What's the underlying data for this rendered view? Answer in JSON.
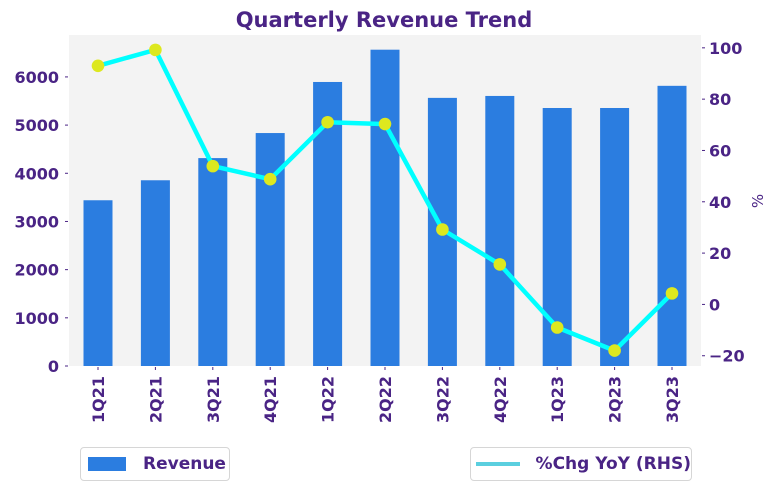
{
  "chart_data": {
    "type": "bar",
    "title": "Quarterly Revenue Trend",
    "categories": [
      "1Q21",
      "2Q21",
      "3Q21",
      "4Q21",
      "1Q22",
      "2Q22",
      "3Q22",
      "4Q22",
      "1Q23",
      "2Q23",
      "3Q23"
    ],
    "series": [
      {
        "name": "Revenue",
        "type": "bar",
        "axis": "left",
        "color": "#2b7de0",
        "values": [
          3440,
          3855,
          4315,
          4835,
          5895,
          6565,
          5565,
          5605,
          5355,
          5355,
          5815
        ]
      },
      {
        "name": "%Chg YoY (RHS)",
        "type": "line",
        "axis": "right",
        "color": "#00ffff",
        "marker_color": "#dde81f",
        "legend_color": "#5bcfdf",
        "values": [
          93.0,
          99.2,
          53.9,
          48.8,
          71.0,
          70.3,
          29.2,
          15.6,
          -9.0,
          -18.0,
          4.3
        ]
      }
    ],
    "xlabel": "",
    "ylabel": "",
    "y2label": "%",
    "ylim": [
      0,
      6870
    ],
    "y2lim": [
      -24,
      105
    ],
    "yticks": [
      0,
      1000,
      2000,
      3000,
      4000,
      5000,
      6000
    ],
    "ytick_labels": [
      "0",
      "1000",
      "2000",
      "3000",
      "4000",
      "5000",
      "6000"
    ],
    "y2ticks": [
      -20,
      0,
      20,
      40,
      60,
      80,
      100
    ],
    "y2tick_labels": [
      "−20",
      "0",
      "20",
      "40",
      "60",
      "80",
      "100"
    ],
    "grid": false,
    "legend": [
      {
        "label": "Revenue",
        "placement": "bottom-left"
      },
      {
        "label": "%Chg YoY (RHS)",
        "placement": "bottom-right"
      }
    ],
    "colors": {
      "text": "#4a2485",
      "plot_background": "#f3f3f3"
    }
  }
}
